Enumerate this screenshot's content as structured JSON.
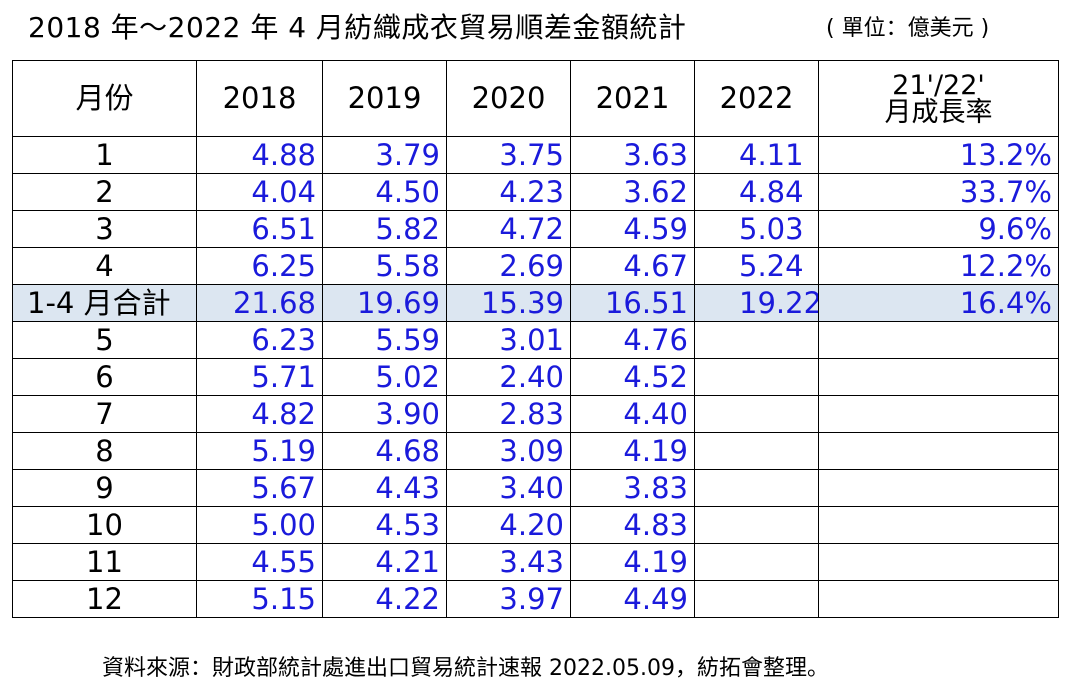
{
  "title": "2018 年～2022 年 4 月紡織成衣貿易順差金額統計",
  "unit": "( 單位：億美元 )",
  "table": {
    "headers": {
      "month": "月份",
      "y2018": "2018",
      "y2019": "2019",
      "y2020": "2020",
      "y2021": "2021",
      "y2022": "2022",
      "rate_line1": "21'/22'",
      "rate_line2": "月成長率"
    },
    "rows": [
      {
        "month": "1",
        "y2018": "4.88",
        "y2019": "3.79",
        "y2020": "3.75",
        "y2021": "3.63",
        "y2022": "4.11",
        "rate": "13.2%"
      },
      {
        "month": "2",
        "y2018": "4.04",
        "y2019": "4.50",
        "y2020": "4.23",
        "y2021": "3.62",
        "y2022": "4.84",
        "rate": "33.7%"
      },
      {
        "month": "3",
        "y2018": "6.51",
        "y2019": "5.82",
        "y2020": "4.72",
        "y2021": "4.59",
        "y2022": "5.03",
        "rate": "9.6%"
      },
      {
        "month": "4",
        "y2018": "6.25",
        "y2019": "5.58",
        "y2020": "2.69",
        "y2021": "4.67",
        "y2022": "5.24",
        "rate": "12.2%"
      },
      {
        "month": "1-4 月合計",
        "y2018": "21.68",
        "y2019": "19.69",
        "y2020": "15.39",
        "y2021": "16.51",
        "y2022": "19.22",
        "rate": "16.4%"
      },
      {
        "month": "5",
        "y2018": "6.23",
        "y2019": "5.59",
        "y2020": "3.01",
        "y2021": "4.76",
        "y2022": "",
        "rate": ""
      },
      {
        "month": "6",
        "y2018": "5.71",
        "y2019": "5.02",
        "y2020": "2.40",
        "y2021": "4.52",
        "y2022": "",
        "rate": ""
      },
      {
        "month": "7",
        "y2018": "4.82",
        "y2019": "3.90",
        "y2020": "2.83",
        "y2021": "4.40",
        "y2022": "",
        "rate": ""
      },
      {
        "month": "8",
        "y2018": "5.19",
        "y2019": "4.68",
        "y2020": "3.09",
        "y2021": "4.19",
        "y2022": "",
        "rate": ""
      },
      {
        "month": "9",
        "y2018": "5.67",
        "y2019": "4.43",
        "y2020": "3.40",
        "y2021": "3.83",
        "y2022": "",
        "rate": ""
      },
      {
        "month": "10",
        "y2018": "5.00",
        "y2019": "4.53",
        "y2020": "4.20",
        "y2021": "4.83",
        "y2022": "",
        "rate": ""
      },
      {
        "month": "11",
        "y2018": "4.55",
        "y2019": "4.21",
        "y2020": "3.43",
        "y2021": "4.19",
        "y2022": "",
        "rate": ""
      },
      {
        "month": "12",
        "y2018": "5.15",
        "y2019": "4.22",
        "y2020": "3.97",
        "y2021": "4.49",
        "y2022": "",
        "rate": ""
      }
    ]
  },
  "source": "資料來源：財政部統計處進出口貿易統計速報 2022.05.09，紡拓會整理。",
  "colors": {
    "value_text": "#1a1adb",
    "total_row_bg": "#dce6f1"
  }
}
